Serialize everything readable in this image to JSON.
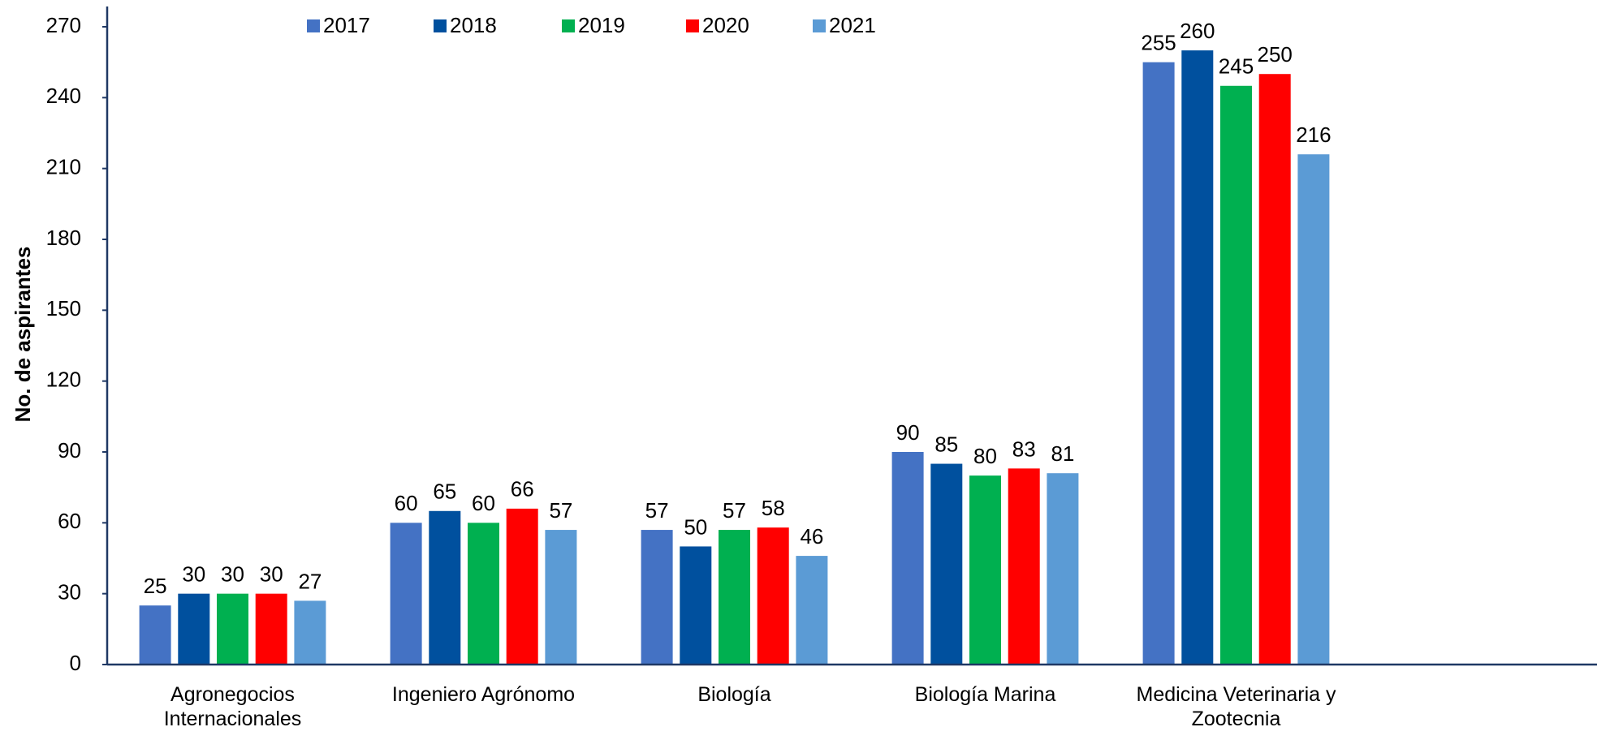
{
  "chart_data": {
    "type": "bar",
    "y_label": "No. de aspirantes",
    "categories": [
      "Agronegocios Internacionales",
      "Ingeniero Agrónomo",
      "Biología",
      "Biología Marina",
      "Medicina Veterinaria y Zootecnia"
    ],
    "series": [
      {
        "name": "2017",
        "color": "#4472c4",
        "values": [
          25,
          60,
          57,
          90,
          255
        ]
      },
      {
        "name": "2018",
        "color": "#00509e",
        "values": [
          30,
          65,
          50,
          85,
          260
        ]
      },
      {
        "name": "2019",
        "color": "#00b050",
        "values": [
          30,
          60,
          57,
          80,
          245
        ]
      },
      {
        "name": "2020",
        "color": "#ff0000",
        "values": [
          30,
          66,
          58,
          83,
          250
        ]
      },
      {
        "name": "2021",
        "color": "#5b9bd5",
        "values": [
          27,
          57,
          46,
          81,
          216
        ]
      }
    ],
    "ylim": [
      0,
      270
    ],
    "yticks": [
      0,
      30,
      60,
      90,
      120,
      150,
      180,
      210,
      240,
      270
    ],
    "grid": false,
    "legend": "top"
  }
}
